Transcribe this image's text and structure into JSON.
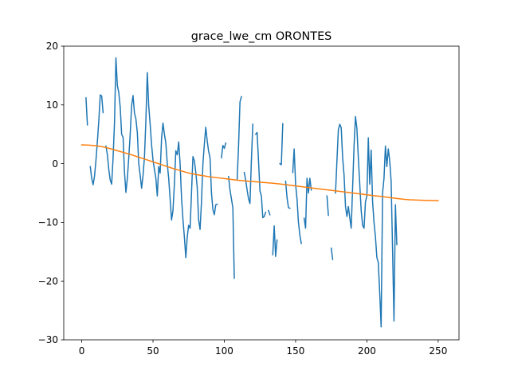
{
  "chart_data": {
    "type": "line",
    "title": "grace_lwe_cm ORONTES",
    "xlabel": "",
    "ylabel": "",
    "xlim": [
      -12.6,
      264.6
    ],
    "ylim": [
      -30,
      20
    ],
    "x_ticks": [
      0,
      50,
      100,
      150,
      200,
      250
    ],
    "y_ticks": [
      -30,
      -20,
      -10,
      0,
      10,
      20
    ],
    "grid": false,
    "legend": "none",
    "series": [
      {
        "color": "#1f77b4",
        "points": [
          [
            3,
            11.2
          ],
          [
            4,
            6.6
          ],
          null,
          [
            6,
            -0.5
          ],
          [
            7,
            -2.5
          ],
          [
            8,
            -3.6
          ],
          [
            9,
            -2.1
          ],
          [
            10,
            0.6
          ],
          [
            11,
            3.8
          ],
          [
            12,
            7.3
          ],
          [
            13,
            11.7
          ],
          [
            14,
            11.5
          ],
          [
            15,
            8.7
          ],
          null,
          [
            17,
            3.0
          ],
          [
            18,
            1.5
          ],
          [
            19,
            -1.0
          ],
          [
            20,
            -2.8
          ],
          [
            21,
            -3.5
          ],
          [
            22,
            1.0
          ],
          [
            23,
            7.0
          ],
          [
            24,
            18.0
          ],
          [
            25,
            13.3
          ],
          [
            26,
            12.1
          ],
          [
            27,
            9.6
          ],
          [
            28,
            5.0
          ],
          [
            29,
            4.5
          ],
          [
            30,
            -1.5
          ],
          [
            31,
            -4.9
          ],
          [
            32,
            -2.5
          ],
          [
            33,
            1.0
          ],
          [
            34,
            5.0
          ],
          [
            35,
            9.9
          ],
          [
            36,
            11.6
          ],
          [
            37,
            8.6
          ],
          [
            38,
            7.6
          ],
          [
            39,
            5.3
          ],
          [
            40,
            0.0
          ],
          [
            41,
            -2.0
          ],
          [
            42,
            -4.2
          ],
          [
            43,
            -2.0
          ],
          [
            44,
            1.1
          ],
          [
            45,
            7.3
          ],
          [
            46,
            15.5
          ],
          [
            47,
            9.8
          ],
          [
            48,
            6.7
          ],
          [
            49,
            3.2
          ],
          [
            50,
            0.6
          ],
          [
            51,
            -1.0
          ],
          [
            52,
            -2.5
          ],
          [
            53,
            -5.5
          ],
          [
            54,
            -0.5
          ],
          [
            55,
            -1.6
          ],
          [
            56,
            4.3
          ],
          [
            57,
            6.9
          ],
          [
            58,
            5.0
          ],
          [
            59,
            3.5
          ],
          [
            60,
            0.0
          ],
          [
            61,
            -2.5
          ],
          [
            62,
            -6.0
          ],
          [
            63,
            -9.6
          ],
          [
            64,
            -8.0
          ],
          [
            65,
            -3.5
          ],
          [
            66,
            2.2
          ],
          [
            67,
            1.5
          ],
          [
            68,
            3.7
          ],
          [
            69,
            0.0
          ],
          [
            70,
            -5.8
          ],
          [
            71,
            -9.5
          ],
          [
            72,
            -12.5
          ],
          [
            73,
            -16.0
          ],
          [
            74,
            -12.5
          ],
          [
            75,
            -10.5
          ],
          [
            76,
            -11.0
          ],
          [
            77,
            -5.0
          ],
          [
            78,
            1.2
          ],
          [
            79,
            0.5
          ],
          [
            80,
            -1.5
          ],
          [
            81,
            -4.0
          ],
          [
            82,
            -9.6
          ],
          [
            83,
            -11.2
          ],
          [
            84,
            -6.5
          ],
          [
            85,
            0.0
          ],
          [
            86,
            3.3
          ],
          [
            87,
            6.2
          ],
          [
            88,
            3.9
          ],
          [
            89,
            2.1
          ],
          [
            90,
            1.0
          ],
          [
            91,
            -5.0
          ],
          [
            92,
            -7.8
          ],
          [
            93,
            -8.7
          ],
          [
            94,
            -7.0
          ],
          [
            95,
            -6.9
          ],
          null,
          [
            98,
            1.0
          ],
          [
            99,
            3.1
          ],
          [
            100,
            2.6
          ],
          [
            101,
            3.5
          ],
          null,
          [
            103,
            -2.2
          ],
          [
            104,
            -4.5
          ],
          [
            105,
            -6.0
          ],
          [
            106,
            -7.5
          ],
          [
            107,
            -19.5
          ],
          null,
          [
            109,
            -2.8
          ],
          [
            110,
            3.0
          ],
          [
            111,
            10.5
          ],
          [
            112,
            11.4
          ],
          null,
          [
            114,
            -1.5
          ],
          [
            115,
            -2.8
          ],
          [
            116,
            -4.5
          ],
          [
            117,
            -6.0
          ],
          [
            118,
            -6.8
          ],
          [
            119,
            0.5
          ],
          [
            120,
            6.7
          ],
          null,
          [
            122,
            5.0
          ],
          [
            123,
            5.3
          ],
          [
            124,
            0.5
          ],
          [
            125,
            -4.6
          ],
          [
            126,
            -5.5
          ],
          [
            127,
            -9.2
          ],
          [
            128,
            -9.0
          ],
          [
            129,
            -8.3
          ],
          null,
          [
            131,
            -8.0
          ],
          [
            132,
            -8.7
          ],
          null,
          [
            134,
            -15.5
          ],
          [
            135,
            -10.6
          ],
          [
            136,
            -15.8
          ],
          [
            137,
            -13.0
          ],
          null,
          [
            139,
            0.0
          ],
          [
            140,
            -0.2
          ],
          [
            141,
            6.8
          ],
          null,
          [
            143,
            -3.0
          ],
          [
            144,
            -5.8
          ],
          [
            145,
            -7.5
          ],
          [
            146,
            -7.6
          ],
          null,
          [
            148,
            -1.5
          ],
          [
            149,
            2.5
          ],
          [
            150,
            -3.5
          ],
          [
            151,
            -6.0
          ],
          [
            152,
            -10.0
          ],
          [
            153,
            -12.2
          ],
          [
            154,
            -13.6
          ],
          null,
          [
            156,
            -9.3
          ],
          [
            157,
            -11.0
          ],
          [
            158,
            -2.5
          ],
          [
            159,
            -5.0
          ],
          [
            160,
            -2.5
          ],
          [
            161,
            -4.5
          ],
          null,
          [
            172,
            -5.5
          ],
          [
            173,
            -8.8
          ],
          null,
          [
            175,
            -14.4
          ],
          [
            176,
            -16.3
          ],
          null,
          [
            178,
            -5.0
          ],
          [
            179,
            0.5
          ],
          [
            180,
            5.8
          ],
          [
            181,
            6.7
          ],
          [
            182,
            6.1
          ],
          [
            183,
            1.0
          ],
          [
            184,
            -2.0
          ],
          [
            185,
            -7.3
          ],
          [
            186,
            -9.0
          ],
          [
            187,
            -7.3
          ],
          [
            188,
            -9.2
          ],
          [
            189,
            -11.0
          ],
          [
            190,
            -4.0
          ],
          [
            191,
            3.0
          ],
          [
            192,
            8.0
          ],
          [
            193,
            6.0
          ],
          [
            194,
            1.0
          ],
          [
            195,
            -3.5
          ],
          [
            196,
            -8.0
          ],
          [
            197,
            -10.5
          ],
          [
            198,
            -11.0
          ],
          [
            199,
            -6.5
          ],
          [
            200,
            -5.5
          ],
          [
            201,
            4.4
          ],
          [
            202,
            -3.5
          ],
          [
            203,
            2.3
          ],
          [
            204,
            -6.5
          ],
          [
            205,
            -10.0
          ],
          [
            206,
            -12.5
          ],
          [
            207,
            -16.0
          ],
          [
            208,
            -16.8
          ],
          [
            209,
            -22.0
          ],
          [
            210,
            -27.8
          ],
          [
            211,
            -5.0
          ],
          [
            212,
            -2.5
          ],
          [
            213,
            3.0
          ],
          [
            214,
            -0.5
          ],
          [
            215,
            2.5
          ],
          [
            216,
            0.5
          ],
          [
            217,
            -3.0
          ],
          [
            218,
            -14.5
          ],
          [
            219,
            -26.8
          ],
          [
            220,
            -7.0
          ],
          [
            221,
            -13.8
          ]
        ]
      },
      {
        "color": "#ff7f0e",
        "points": [
          [
            0,
            3.2
          ],
          [
            5,
            3.15
          ],
          [
            10,
            3.05
          ],
          [
            15,
            2.85
          ],
          [
            20,
            2.55
          ],
          [
            25,
            2.2
          ],
          [
            30,
            1.85
          ],
          [
            35,
            1.5
          ],
          [
            40,
            1.1
          ],
          [
            45,
            0.7
          ],
          [
            50,
            0.3
          ],
          [
            55,
            -0.1
          ],
          [
            60,
            -0.5
          ],
          [
            65,
            -0.9
          ],
          [
            70,
            -1.25
          ],
          [
            75,
            -1.6
          ],
          [
            80,
            -1.85
          ],
          [
            85,
            -2.05
          ],
          [
            90,
            -2.25
          ],
          [
            95,
            -2.4
          ],
          [
            100,
            -2.55
          ],
          [
            105,
            -2.7
          ],
          [
            110,
            -2.85
          ],
          [
            115,
            -2.95
          ],
          [
            120,
            -3.05
          ],
          [
            125,
            -3.15
          ],
          [
            130,
            -3.25
          ],
          [
            135,
            -3.35
          ],
          [
            140,
            -3.5
          ],
          [
            145,
            -3.65
          ],
          [
            150,
            -3.8
          ],
          [
            155,
            -3.95
          ],
          [
            160,
            -4.1
          ],
          [
            165,
            -4.25
          ],
          [
            170,
            -4.4
          ],
          [
            175,
            -4.55
          ],
          [
            180,
            -4.7
          ],
          [
            185,
            -4.85
          ],
          [
            190,
            -5.0
          ],
          [
            195,
            -5.15
          ],
          [
            200,
            -5.3
          ],
          [
            205,
            -5.45
          ],
          [
            210,
            -5.6
          ],
          [
            215,
            -5.75
          ],
          [
            220,
            -5.9
          ],
          [
            225,
            -6.05
          ],
          [
            230,
            -6.15
          ],
          [
            235,
            -6.2
          ],
          [
            240,
            -6.25
          ],
          [
            245,
            -6.28
          ],
          [
            250,
            -6.3
          ]
        ]
      }
    ]
  }
}
